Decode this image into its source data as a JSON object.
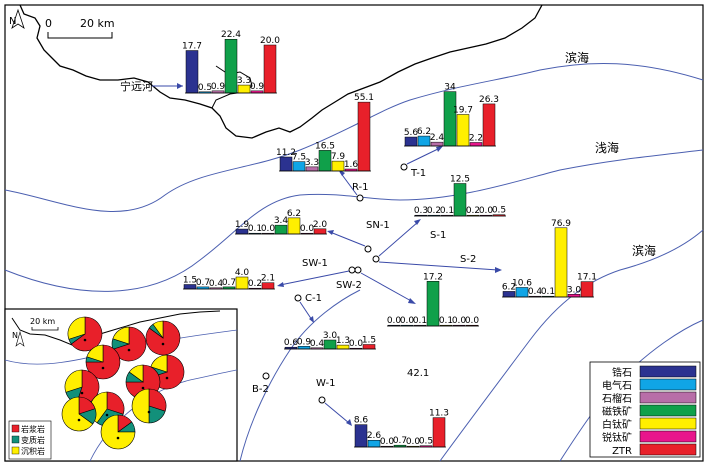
{
  "map": {
    "scale_label": "20 km",
    "scale_zero": "0",
    "north": "N",
    "regions": [
      "滨海",
      "浅海",
      "滨海"
    ],
    "river_label": "宁远河",
    "stray_value": "42.1"
  },
  "legend": {
    "items": [
      {
        "label": "锆石",
        "color": "#2b3290"
      },
      {
        "label": "电气石",
        "color": "#10a5e6"
      },
      {
        "label": "石榴石",
        "color": "#b86ea8"
      },
      {
        "label": "磁铁矿",
        "color": "#10a04a"
      },
      {
        "label": "白钛矿",
        "color": "#ffef00"
      },
      {
        "label": "锐钛矿",
        "color": "#e8158c"
      },
      {
        "label": "ZTR",
        "color": "#e8202a"
      }
    ]
  },
  "inset": {
    "scale_label": "20 km",
    "north": "N",
    "legend": [
      {
        "label": "岩浆岩",
        "color": "#e8202a"
      },
      {
        "label": "变质岩",
        "color": "#12907a"
      },
      {
        "label": "沉积岩",
        "color": "#ffef00"
      }
    ]
  },
  "chart_data": [
    {
      "type": "bar",
      "station": "",
      "categories": [
        "锆石",
        "电气石",
        "石榴石",
        "磁铁矿",
        "白钛矿",
        "锐钛矿",
        "ZTR"
      ],
      "values": [
        17.7,
        0.5,
        0.9,
        22.4,
        3.3,
        0.9,
        20.0
      ],
      "labels": [
        "17.7",
        "0.5",
        "0.9",
        "22.4",
        "3.3",
        "0.9",
        "20.0"
      ]
    },
    {
      "type": "bar",
      "station": "R-1",
      "categories": [
        "锆石",
        "电气石",
        "石榴石",
        "磁铁矿",
        "白钛矿",
        "锐钛矿",
        "ZTR"
      ],
      "values": [
        11.2,
        7.5,
        3.3,
        16.5,
        7.9,
        1.6,
        55.1
      ],
      "labels": [
        "11.2",
        "7.5",
        "3.3",
        "16.5",
        "7.9",
        "1.6",
        "55.1"
      ]
    },
    {
      "type": "bar",
      "station": "T-1",
      "categories": [
        "锆石",
        "电气石",
        "石榴石",
        "磁铁矿",
        "白钛矿",
        "锐钛矿",
        "ZTR"
      ],
      "values": [
        5.6,
        6.2,
        2.4,
        34,
        19.7,
        2.2,
        26.3
      ],
      "labels": [
        "5.6",
        "6.2",
        "2.4",
        "34",
        "19.7",
        "2.2",
        "26.3"
      ]
    },
    {
      "type": "bar",
      "station": "SN-1",
      "categories": [
        "锆石",
        "电气石",
        "石榴石",
        "磁铁矿",
        "白钛矿",
        "锐钛矿",
        "ZTR"
      ],
      "values": [
        1.9,
        0.1,
        0.0,
        3.4,
        6.2,
        0.0,
        2.0
      ],
      "labels": [
        "1.9",
        "0.1",
        "0.0",
        "3.4",
        "6.2",
        "0.0",
        "2.0"
      ]
    },
    {
      "type": "bar",
      "station": "S-1",
      "categories": [
        "锆石",
        "电气石",
        "石榴石",
        "磁铁矿",
        "白钛矿",
        "锐钛矿",
        "ZTR"
      ],
      "values": [
        0.3,
        0.2,
        0.1,
        12.5,
        0.2,
        0.0,
        0.5
      ],
      "labels": [
        "0.3",
        "0.2",
        "0.1",
        "12.5",
        "0.2",
        "0.0",
        "0.5"
      ]
    },
    {
      "type": "bar",
      "station": "SW-1",
      "categories": [
        "锆石",
        "电气石",
        "石榴石",
        "磁铁矿",
        "白钛矿",
        "锐钛矿",
        "ZTR"
      ],
      "values": [
        1.5,
        0.7,
        0.4,
        0.7,
        4.0,
        0.2,
        2.1
      ],
      "labels": [
        "1.5",
        "0.7",
        "0.4",
        "0.7",
        "4.0",
        "0.2",
        "2.1"
      ]
    },
    {
      "type": "bar",
      "station": "SW-2",
      "categories": [
        "锆石",
        "电气石",
        "石榴石",
        "磁铁矿",
        "白钛矿",
        "锐钛矿",
        "ZTR"
      ],
      "values": [
        0.0,
        0.0,
        0.1,
        17.2,
        0.1,
        0.0,
        0.0
      ],
      "labels": [
        "0.0",
        "0.0",
        "0.1",
        "17.2",
        "0.1",
        "0.0",
        "0.0"
      ]
    },
    {
      "type": "bar",
      "station": "S-2",
      "categories": [
        "锆石",
        "电气石",
        "石榴石",
        "磁铁矿",
        "白钛矿",
        "锐钛矿",
        "ZTR"
      ],
      "values": [
        6.2,
        10.6,
        0.4,
        0.1,
        76.9,
        3.0,
        17.1
      ],
      "labels": [
        "6.2",
        "10.6",
        "0.4",
        "0.1",
        "76.9",
        "3.0",
        "17.1"
      ]
    },
    {
      "type": "bar",
      "station": "C-1",
      "categories": [
        "锆石",
        "电气石",
        "石榴石",
        "磁铁矿",
        "白钛矿",
        "锐钛矿",
        "ZTR"
      ],
      "values": [
        0.6,
        0.9,
        0.4,
        3.0,
        1.3,
        0.0,
        1.5
      ],
      "labels": [
        "0.6",
        "0.9",
        "0.4",
        "3.0",
        "1.3",
        "0.0",
        "1.5"
      ]
    },
    {
      "type": "bar",
      "station": "W-1",
      "categories": [
        "锆石",
        "电气石",
        "石榴石",
        "磁铁矿",
        "白钛矿",
        "锐钛矿",
        "ZTR"
      ],
      "values": [
        8.6,
        2.6,
        0.0,
        0.7,
        0.0,
        0.5,
        11.3
      ],
      "labels": [
        "8.6",
        "2.6",
        "0.0",
        "0.7",
        "0.0",
        "0.5",
        "11.3"
      ]
    },
    {
      "type": "pie",
      "categories": [
        "岩浆岩",
        "变质岩",
        "沉积岩"
      ],
      "pies": [
        [
          65,
          5,
          30
        ],
        [
          70,
          10,
          20
        ],
        [
          85,
          5,
          10
        ],
        [
          75,
          5,
          20
        ],
        [
          70,
          10,
          20
        ],
        [
          55,
          15,
          30
        ],
        [
          75,
          10,
          15
        ],
        [
          30,
          30,
          40
        ],
        [
          30,
          20,
          50
        ],
        [
          20,
          15,
          65
        ],
        [
          15,
          10,
          75
        ]
      ]
    }
  ]
}
